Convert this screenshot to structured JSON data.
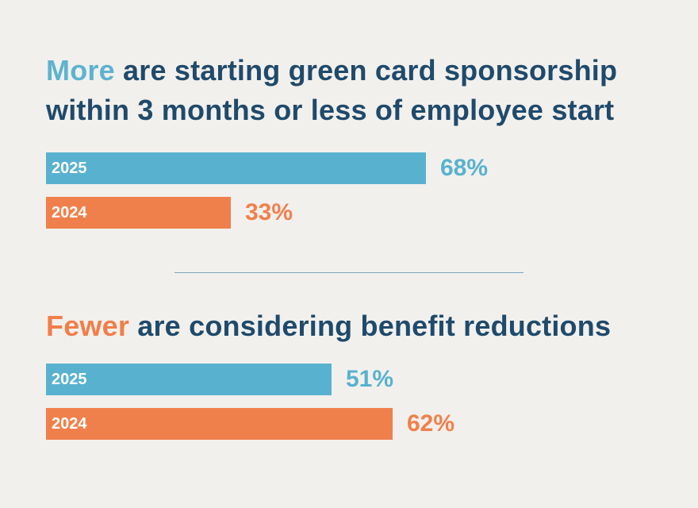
{
  "colors": {
    "series_2025": "#58b2cf",
    "series_2024": "#f0804b",
    "heading_text": "#1f4a6b"
  },
  "chart_data": [
    {
      "type": "bar",
      "orientation": "horizontal",
      "title_accent": "More",
      "title_rest": " are starting green card sponsorship within 3 months or less of employee start",
      "categories": [
        "2025",
        "2024"
      ],
      "values": [
        68,
        33
      ],
      "value_labels": [
        "68%",
        "33%"
      ],
      "unit": "%",
      "xlim": [
        0,
        100
      ],
      "colors": [
        "#58b2cf",
        "#f0804b"
      ]
    },
    {
      "type": "bar",
      "orientation": "horizontal",
      "title_accent": "Fewer",
      "title_rest": " are considering benefit reductions",
      "categories": [
        "2025",
        "2024"
      ],
      "values": [
        51,
        62
      ],
      "value_labels": [
        "51%",
        "62%"
      ],
      "unit": "%",
      "xlim": [
        0,
        100
      ],
      "colors": [
        "#58b2cf",
        "#f0804b"
      ]
    }
  ]
}
